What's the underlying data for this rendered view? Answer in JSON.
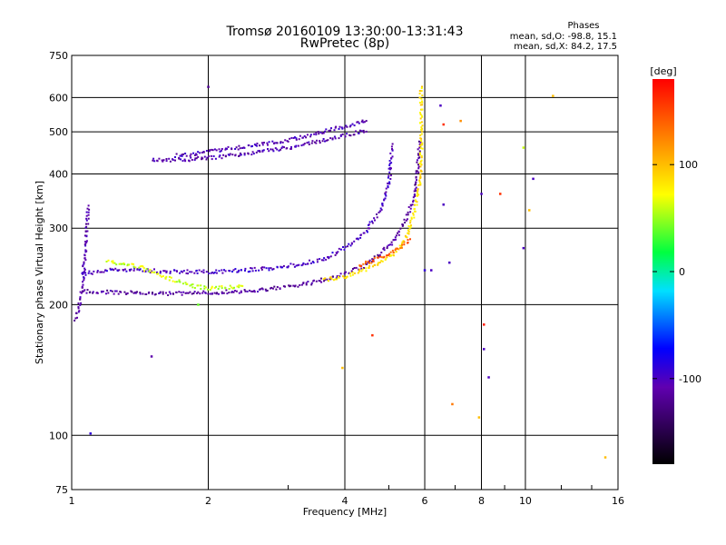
{
  "chart_data": {
    "type": "scatter",
    "title": "Tromsø 20160109 13:30:00-13:31:43",
    "subtitle": "RwPretec (8p)",
    "xlabel": "Frequency [MHz]",
    "ylabel": "Stationary phase Virtual Height [km]",
    "x_scale": "log",
    "y_scale": "log",
    "xlim": [
      1,
      16
    ],
    "ylim": [
      75,
      750
    ],
    "x_ticks": [
      {
        "v": 1,
        "label": "1"
      },
      {
        "v": 2,
        "label": "2"
      },
      {
        "v": 4,
        "label": "4"
      },
      {
        "v": 6,
        "label": "6"
      },
      {
        "v": 8,
        "label": "8"
      },
      {
        "v": 10,
        "label": "10"
      },
      {
        "v": 16,
        "label": "16"
      }
    ],
    "y_ticks": [
      {
        "v": 75,
        "label": "75"
      },
      {
        "v": 100,
        "label": "100"
      },
      {
        "v": 200,
        "label": "200"
      },
      {
        "v": 300,
        "label": "300"
      },
      {
        "v": 400,
        "label": "400"
      },
      {
        "v": 500,
        "label": "500"
      },
      {
        "v": 600,
        "label": "600"
      },
      {
        "v": 750,
        "label": "750"
      }
    ],
    "grid": true,
    "stats": {
      "header": "Phases",
      "line_o": "mean, sd,O: -98.8, 15.1",
      "line_x": "mean, sd,X:  84.2, 17.5"
    },
    "colorbar": {
      "label": "[deg]",
      "range": [
        -180,
        180
      ],
      "ticks": [
        {
          "v": 100,
          "label": "100"
        },
        {
          "v": 0,
          "label": "0"
        },
        {
          "v": -100,
          "label": "-100"
        }
      ]
    },
    "traces": [
      {
        "name": "",
        "phase": -105,
        "points": [
          [
            1.7,
            440
          ],
          [
            2.0,
            450
          ],
          [
            2.4,
            462
          ],
          [
            2.8,
            472
          ],
          [
            3.2,
            485
          ],
          [
            3.6,
            500
          ],
          [
            4.0,
            515
          ],
          [
            4.3,
            525
          ],
          [
            4.5,
            530
          ]
        ]
      },
      {
        "name": "",
        "phase": -108,
        "points": [
          [
            1.5,
            430
          ],
          [
            1.8,
            432
          ],
          [
            2.0,
            435
          ],
          [
            2.4,
            445
          ],
          [
            2.8,
            455
          ],
          [
            3.2,
            465
          ],
          [
            3.6,
            478
          ],
          [
            4.0,
            490
          ],
          [
            4.5,
            505
          ]
        ]
      },
      {
        "name": "",
        "phase": -100,
        "points": [
          [
            1.05,
            235
          ],
          [
            1.2,
            240
          ],
          [
            1.4,
            240
          ],
          [
            1.7,
            238
          ],
          [
            2.0,
            238
          ],
          [
            2.4,
            240
          ],
          [
            2.8,
            243
          ],
          [
            3.2,
            248
          ],
          [
            3.6,
            255
          ],
          [
            4.0,
            270
          ],
          [
            4.4,
            290
          ],
          [
            4.8,
            330
          ],
          [
            5.0,
            380
          ],
          [
            5.05,
            420
          ],
          [
            5.1,
            470
          ]
        ]
      },
      {
        "name": "",
        "phase": -115,
        "points": [
          [
            1.05,
            215
          ],
          [
            1.3,
            213
          ],
          [
            1.6,
            212
          ],
          [
            2.0,
            213
          ],
          [
            2.4,
            215
          ],
          [
            2.8,
            218
          ],
          [
            3.2,
            222
          ],
          [
            3.6,
            228
          ],
          [
            4.0,
            235
          ],
          [
            4.4,
            245
          ],
          [
            4.8,
            262
          ],
          [
            5.2,
            285
          ],
          [
            5.5,
            320
          ],
          [
            5.7,
            360
          ],
          [
            5.8,
            420
          ],
          [
            5.85,
            480
          ]
        ]
      },
      {
        "name": "",
        "phase": 85,
        "points": [
          [
            3.6,
            228
          ],
          [
            4.0,
            232
          ],
          [
            4.4,
            240
          ],
          [
            4.8,
            250
          ],
          [
            5.2,
            265
          ],
          [
            5.5,
            290
          ],
          [
            5.7,
            330
          ],
          [
            5.85,
            380
          ],
          [
            5.9,
            450
          ],
          [
            5.9,
            540
          ],
          [
            5.88,
            640
          ]
        ]
      },
      {
        "name": "",
        "phase": 60,
        "points": [
          [
            1.2,
            252
          ],
          [
            1.4,
            245
          ],
          [
            1.6,
            232
          ],
          [
            1.8,
            222
          ],
          [
            2.0,
            218
          ],
          [
            2.4,
            220
          ]
        ]
      },
      {
        "name": "",
        "phase": -110,
        "points": [
          [
            1.02,
            185
          ],
          [
            1.05,
            210
          ],
          [
            1.07,
            260
          ],
          [
            1.08,
            300
          ],
          [
            1.09,
            340
          ]
        ]
      },
      {
        "name": "",
        "phase": 140,
        "points": [
          [
            4.3,
            245
          ],
          [
            4.7,
            255
          ],
          [
            5.0,
            262
          ],
          [
            5.3,
            270
          ],
          [
            5.6,
            285
          ]
        ]
      }
    ],
    "scatter_points": [
      [
        2.0,
        635,
        -120
      ],
      [
        6.5,
        575,
        -100
      ],
      [
        6.6,
        520,
        160
      ],
      [
        7.2,
        530,
        120
      ],
      [
        9.9,
        460,
        60
      ],
      [
        11.5,
        605,
        100
      ],
      [
        8.0,
        360,
        -100
      ],
      [
        8.8,
        360,
        160
      ],
      [
        9.9,
        270,
        -100
      ],
      [
        10.4,
        390,
        -100
      ],
      [
        6.6,
        340,
        -100
      ],
      [
        10.2,
        330,
        100
      ],
      [
        6.0,
        240,
        -90
      ],
      [
        6.2,
        240,
        -100
      ],
      [
        6.8,
        250,
        -100
      ],
      [
        6.9,
        118,
        130
      ],
      [
        4.6,
        170,
        160
      ],
      [
        3.95,
        143,
        100
      ],
      [
        8.1,
        180,
        170
      ],
      [
        8.1,
        158,
        -100
      ],
      [
        8.3,
        136,
        -100
      ],
      [
        7.9,
        110,
        100
      ],
      [
        15.0,
        89,
        100
      ],
      [
        1.9,
        200,
        40
      ],
      [
        1.5,
        152,
        -110
      ],
      [
        1.1,
        101,
        -90
      ]
    ]
  }
}
